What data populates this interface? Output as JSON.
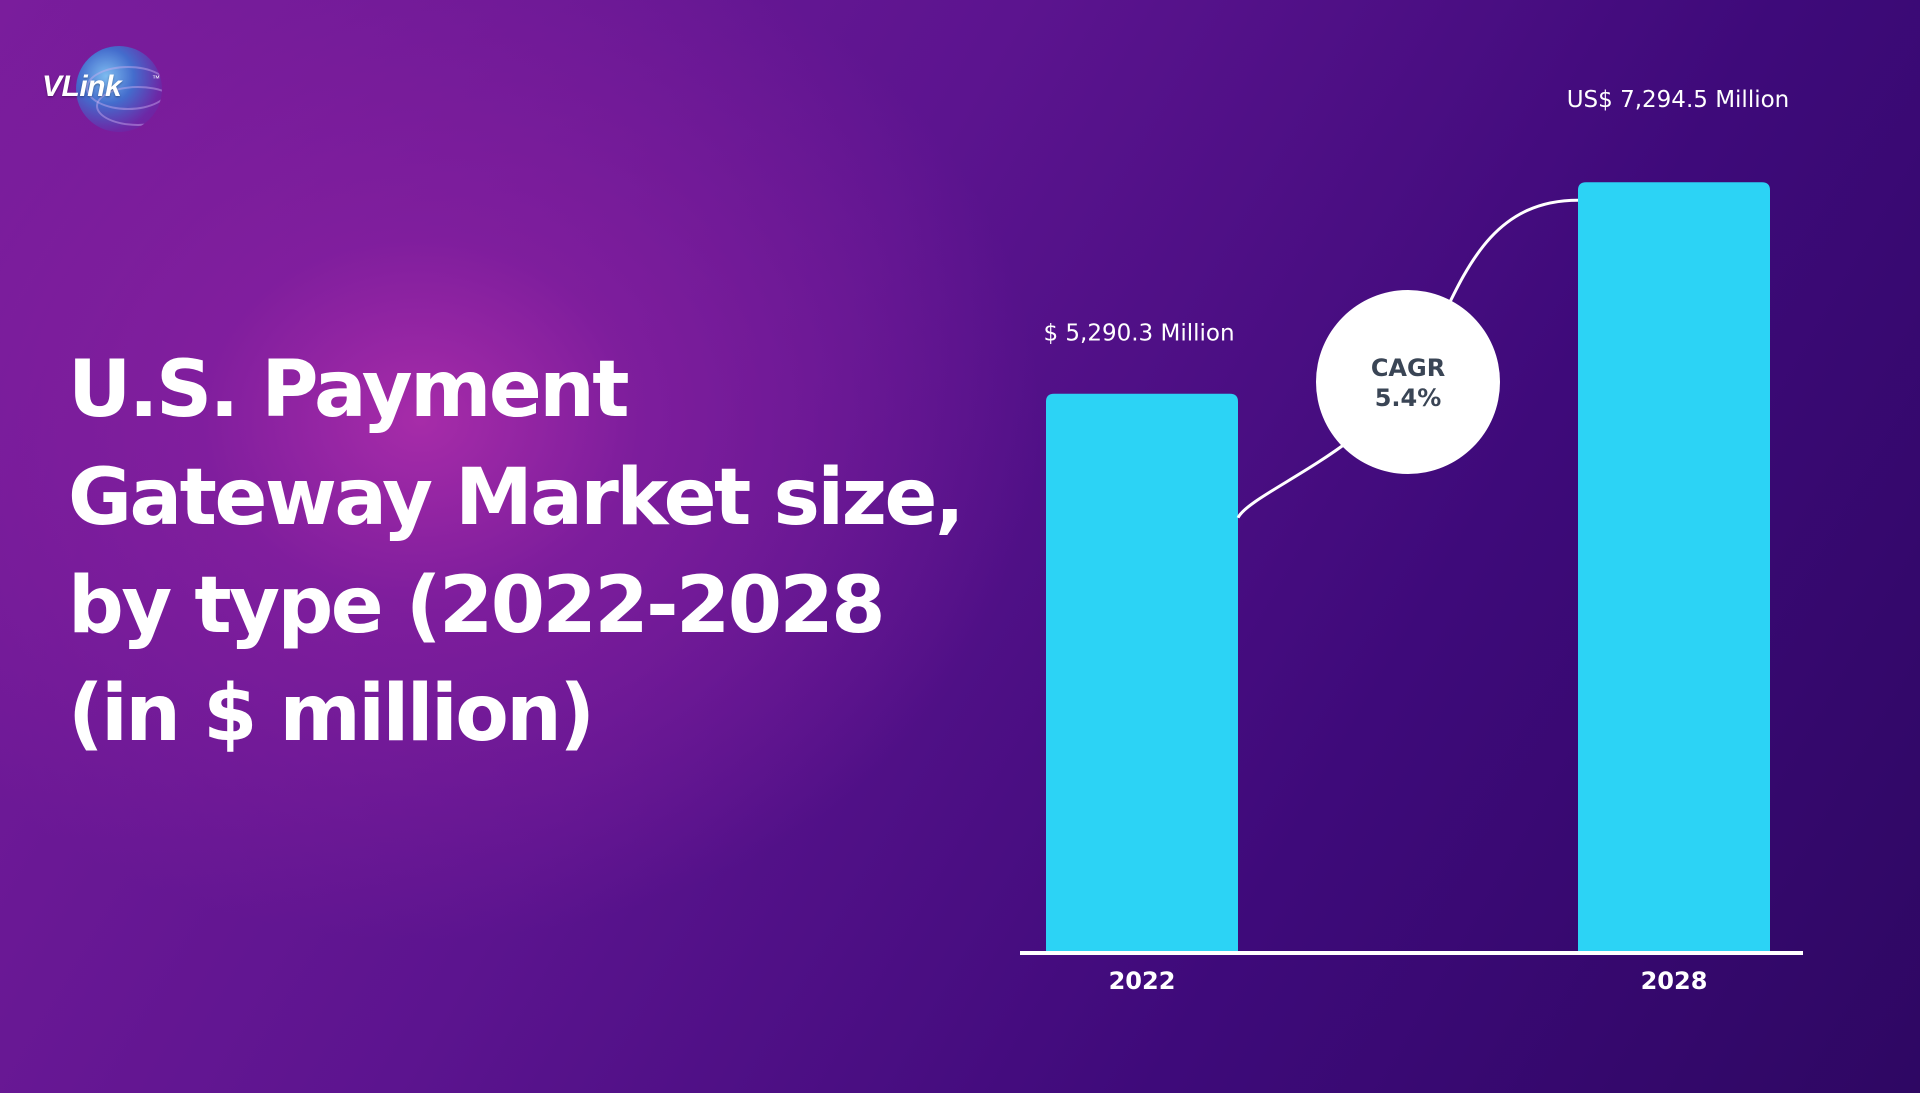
{
  "brand": {
    "name": "VLink",
    "trademark": "™"
  },
  "title": "U.S. Payment Gateway Market size, by type (2022-2028 (in $ million)",
  "title_lines": [
    "U.S. Payment",
    "Gateway Market size,",
    "by type (2022-2028",
    "(in $ million)"
  ],
  "chart_data": {
    "type": "bar",
    "title": "U.S. Payment Gateway Market size, by type (2022-2028 (in $ million)",
    "categories": [
      "2022",
      "2028"
    ],
    "values": [
      5290.3,
      7294.5
    ],
    "data_labels": [
      "$ 5,290.3 Million",
      "US$ 7,294.5 Million"
    ],
    "ylim": [
      0,
      7600
    ],
    "grid": false,
    "xlabel": "",
    "ylabel": "",
    "annotation": {
      "label": "CAGR",
      "value": "5.4%"
    },
    "colors": {
      "bar": "#2cd3f5",
      "axis": "#ffffff",
      "annotation_fill": "#ffffff",
      "annotation_text": "#3a4555"
    }
  }
}
